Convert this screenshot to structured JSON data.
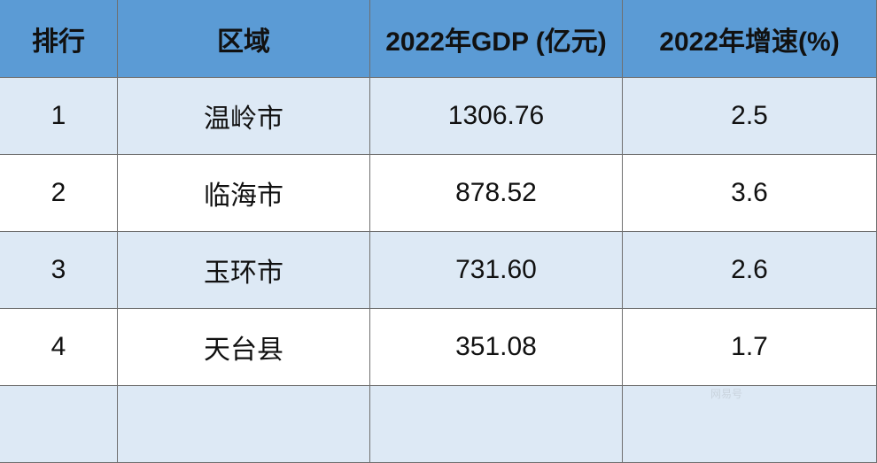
{
  "table": {
    "header": [
      "排行",
      "区域",
      "2022年GDP (亿元)",
      "2022年增速(%)"
    ],
    "rows": [
      [
        "1",
        "温岭市",
        "1306.76",
        "2.5"
      ],
      [
        "2",
        "临海市",
        "878.52",
        "3.6"
      ],
      [
        "3",
        "玉环市",
        "731.60",
        "2.6"
      ],
      [
        "4",
        "天台县",
        "351.08",
        "1.7"
      ]
    ]
  },
  "watermark": "网易号"
}
